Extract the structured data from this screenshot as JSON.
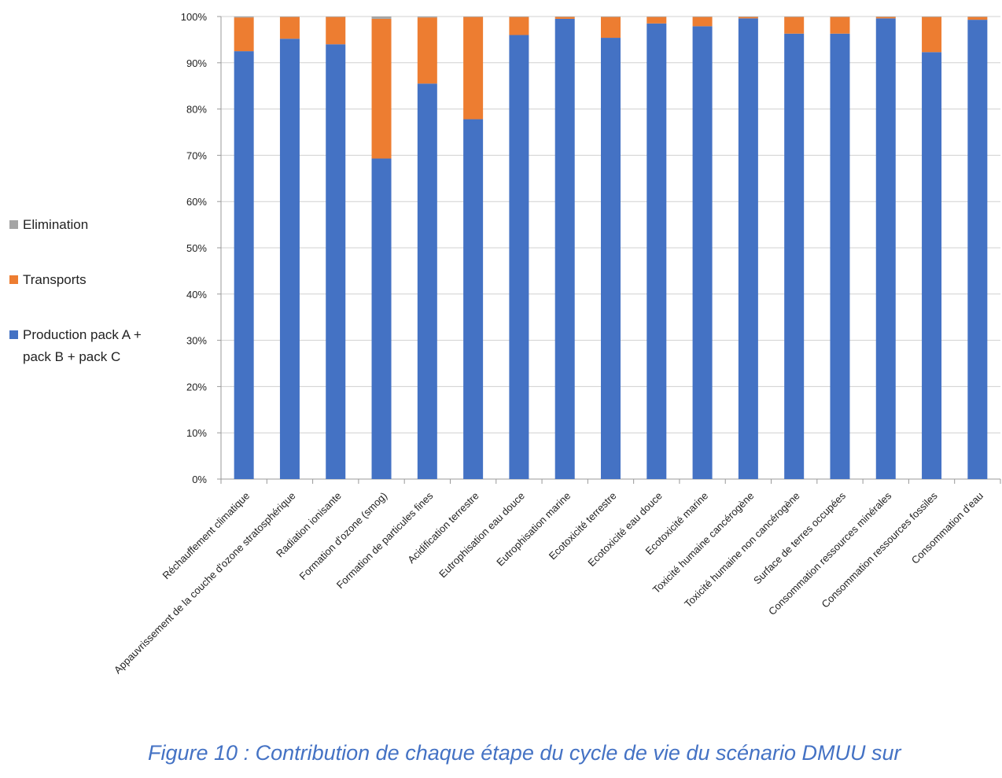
{
  "chart_data": {
    "type": "stacked_bar",
    "caption": "Figure 10 : Contribution de chaque étape du cycle de vie du scénario DMUU sur",
    "categories": [
      "Réchauffement climatique",
      "Appauvrissement de la couche d'ozone stratosphérique",
      "Radiation ionisante",
      "Formation d'ozone (smog)",
      "Formation de particules fines",
      "Acidification terrestre",
      "Eutrophisation eau douce",
      "Eutrophisation marine",
      "Ecotoxicité terrestre",
      "Ecotoxicité eau douce",
      "Ecotoxicité marine",
      "Toxicité humaine cancérogène",
      "Toxicité humaine non cancérogène",
      "Surface de terres occupées",
      "Consommation ressources minérales",
      "Consommation ressources fossiles",
      "Consommation d'eau"
    ],
    "series": [
      {
        "name": "Production pack A + pack B + pack C",
        "color": "#4472c4",
        "values": [
          92.5,
          95.2,
          94,
          69.3,
          85.5,
          77.8,
          96,
          99.5,
          95.4,
          98.5,
          97.9,
          99.6,
          96.3,
          96.3,
          99.6,
          92.3,
          99.3
        ]
      },
      {
        "name": "Transports",
        "color": "#ed7d31",
        "values": [
          7.3,
          4.7,
          5.9,
          30.2,
          14.3,
          22.1,
          3.9,
          0.4,
          4.5,
          1.4,
          2.0,
          0.3,
          3.6,
          3.6,
          0.3,
          7.6,
          0.6
        ]
      },
      {
        "name": "Elimination",
        "color": "#a5a5a5",
        "values": [
          0.2,
          0.1,
          0.1,
          0.5,
          0.2,
          0.1,
          0.1,
          0.1,
          0.1,
          0.1,
          0.1,
          0.1,
          0.1,
          0.1,
          0.1,
          0.1,
          0.1
        ]
      }
    ],
    "ylim": [
      0,
      100
    ],
    "yticks": [
      {
        "value": 0,
        "label": "0%"
      },
      {
        "value": 10,
        "label": "10%"
      },
      {
        "value": 20,
        "label": "20%"
      },
      {
        "value": 30,
        "label": "30%"
      },
      {
        "value": 40,
        "label": "40%"
      },
      {
        "value": 50,
        "label": "50%"
      },
      {
        "value": 60,
        "label": "60%"
      },
      {
        "value": 70,
        "label": "70%"
      },
      {
        "value": 80,
        "label": "80%"
      },
      {
        "value": 90,
        "label": "90%"
      },
      {
        "value": 100,
        "label": "100%"
      }
    ],
    "grid": true
  }
}
